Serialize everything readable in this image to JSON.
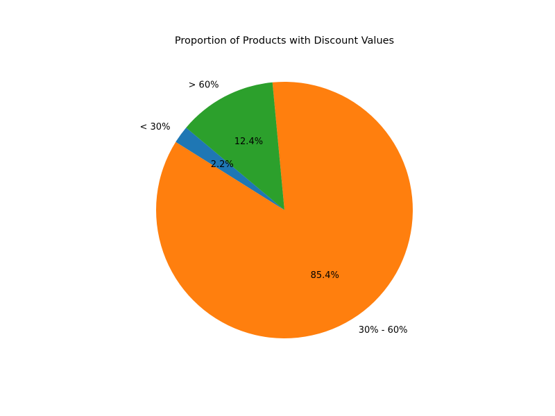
{
  "chart_data": {
    "type": "pie",
    "title": "Proportion of Products with Discount Values",
    "categories": [
      "< 30%",
      "30% - 60%",
      "> 60%"
    ],
    "values": [
      2.2,
      85.4,
      12.4
    ],
    "value_labels": [
      "2.2%",
      "85.4%",
      "12.4%"
    ],
    "colors": [
      "#1f77b4",
      "#ff7f0e",
      "#2ca02c"
    ],
    "start_angle_deg": 140,
    "direction": "counterclockwise",
    "legend": "none"
  }
}
